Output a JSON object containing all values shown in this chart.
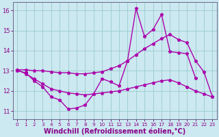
{
  "xlabel": "Windchill (Refroidissement éolien,°C)",
  "bg_color": "#cce8f0",
  "line_color": "#aa00aa",
  "grid_color": "#99cccc",
  "ylim": [
    10.6,
    16.4
  ],
  "xlim": [
    -0.5,
    23.5
  ],
  "yticks": [
    11,
    12,
    13,
    14,
    15,
    16
  ],
  "xticks": [
    0,
    1,
    2,
    3,
    4,
    5,
    6,
    7,
    8,
    9,
    10,
    11,
    12,
    13,
    14,
    15,
    16,
    17,
    18,
    19,
    20,
    21,
    22,
    23
  ],
  "line_zigzag_x": [
    0,
    1,
    2,
    3,
    4,
    5,
    6,
    7,
    8,
    9,
    10,
    11,
    12,
    13,
    14,
    15,
    16,
    17,
    18,
    19,
    20,
    21
  ],
  "line_zigzag_y": [
    13.0,
    12.9,
    12.5,
    12.2,
    11.7,
    11.55,
    11.1,
    11.15,
    11.3,
    11.85,
    12.6,
    12.45,
    12.25,
    13.5,
    16.1,
    14.7,
    15.05,
    15.8,
    13.95,
    13.9,
    13.85,
    12.65
  ],
  "line_upper_x": [
    0,
    1,
    2,
    3,
    4,
    5,
    6,
    7,
    8,
    9,
    10,
    11,
    12,
    13,
    14,
    15,
    16,
    17,
    18,
    19,
    20,
    21,
    22,
    23
  ],
  "line_upper_y": [
    13.05,
    13.05,
    13.0,
    13.0,
    12.95,
    12.9,
    12.9,
    12.85,
    12.85,
    12.9,
    12.95,
    13.1,
    13.25,
    13.5,
    13.8,
    14.1,
    14.35,
    14.6,
    14.8,
    14.55,
    14.4,
    13.5,
    12.95,
    11.7
  ],
  "line_lower_x": [
    0,
    1,
    2,
    3,
    4,
    5,
    6,
    7,
    8,
    9,
    10,
    11,
    12,
    13,
    14,
    15,
    16,
    17,
    18,
    19,
    20,
    21,
    22,
    23
  ],
  "line_lower_y": [
    13.05,
    12.85,
    12.6,
    12.35,
    12.1,
    12.0,
    11.9,
    11.85,
    11.8,
    11.85,
    11.9,
    11.95,
    12.0,
    12.1,
    12.2,
    12.3,
    12.4,
    12.5,
    12.55,
    12.4,
    12.2,
    12.0,
    11.85,
    11.7
  ],
  "marker": "*",
  "marker_size": 3.5,
  "linewidth": 1.0,
  "tick_fontsize": 6.0,
  "xlabel_fontsize": 7.0,
  "tick_color": "#880088",
  "axis_color": "#880088",
  "spine_color": "#666688"
}
